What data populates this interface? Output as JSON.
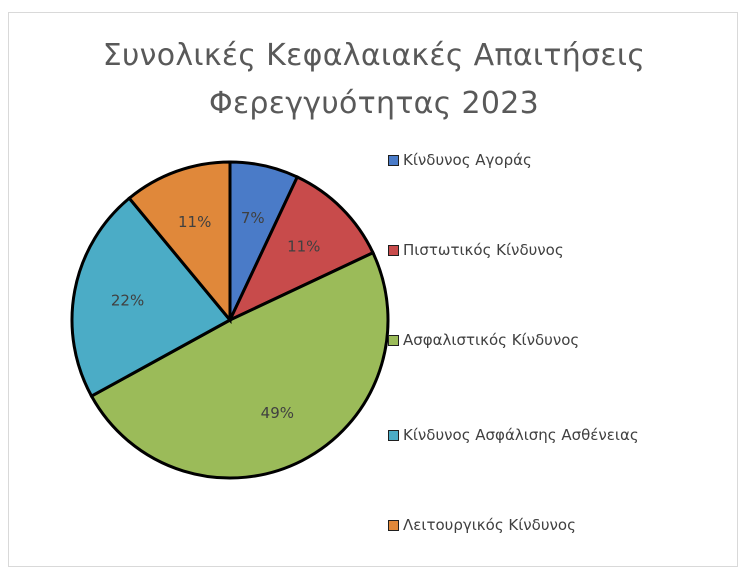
{
  "chart_data": {
    "type": "pie",
    "title": "Συνολικές Κεφαλαιακές Απαιτήσεις Φερεγγυότητας 2023",
    "title_lines": [
      "Συνολικές Κεφαλαιακές Απαιτήσεις",
      "Φερεγγυότητας 2023"
    ],
    "slices": [
      {
        "name": "Κίνδυνος Αγοράς",
        "value": 7,
        "label": "7%",
        "color": "#4A7BC8"
      },
      {
        "name": "Πιστωτικός Κίνδυνος",
        "value": 11,
        "label": "11%",
        "color": "#C84B4B"
      },
      {
        "name": "Ασφαλιστικός  Κίνδυνος",
        "value": 49,
        "label": "49%",
        "color": "#9BBB59"
      },
      {
        "name": "Κίνδυνος Ασφάλισης Ασθένειας",
        "value": 22,
        "label": "22%",
        "color": "#4BACC6"
      },
      {
        "name": "Λειτουργικός  Κίνδυνος",
        "value": 11,
        "label": "11%",
        "color": "#E0883A"
      }
    ],
    "legend_position": "right"
  }
}
